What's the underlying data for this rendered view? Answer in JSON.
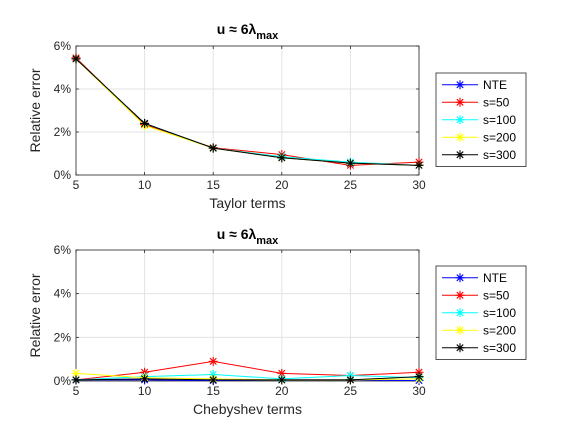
{
  "chart_data": [
    {
      "type": "line",
      "title": "u ≈ 6λ",
      "title_subscript": "max",
      "xlabel": "Taylor terms",
      "ylabel": "Relative error",
      "xlim": [
        5,
        30
      ],
      "ylim": [
        0,
        6
      ],
      "xticks": [
        "5",
        "10",
        "15",
        "20",
        "25",
        "30"
      ],
      "yticks": [
        "0%",
        "2%",
        "4%",
        "6%"
      ],
      "x": [
        5,
        10,
        15,
        20,
        25,
        30
      ],
      "grid": true,
      "legend_position": "right",
      "series": [
        {
          "name": "NTE",
          "color": "#0000ff",
          "values": [
            5.4,
            2.4,
            1.25,
            0.8,
            0.55,
            0.45
          ]
        },
        {
          "name": "s=50",
          "color": "#ff0000",
          "values": [
            5.45,
            2.35,
            1.27,
            0.95,
            0.45,
            0.6
          ]
        },
        {
          "name": "s=100",
          "color": "#00ffff",
          "values": [
            5.4,
            2.4,
            1.25,
            0.85,
            0.6,
            0.45
          ]
        },
        {
          "name": "s=200",
          "color": "#ffff00",
          "values": [
            5.4,
            2.3,
            1.25,
            0.8,
            0.55,
            0.45
          ]
        },
        {
          "name": "s=300",
          "color": "#000000",
          "values": [
            5.4,
            2.4,
            1.25,
            0.8,
            0.55,
            0.45
          ]
        }
      ]
    },
    {
      "type": "line",
      "title": "u ≈ 6λ",
      "title_subscript": "max",
      "xlabel": "Chebyshev terms",
      "ylabel": "Relative error",
      "xlim": [
        5,
        30
      ],
      "ylim": [
        0,
        6
      ],
      "xticks": [
        "5",
        "10",
        "15",
        "20",
        "25",
        "30"
      ],
      "yticks": [
        "0%",
        "2%",
        "4%",
        "6%"
      ],
      "x": [
        5,
        10,
        15,
        20,
        25,
        30
      ],
      "grid": true,
      "legend_position": "right",
      "series": [
        {
          "name": "NTE",
          "color": "#0000ff",
          "values": [
            0.05,
            0.05,
            0.02,
            0.05,
            0.05,
            0.02
          ]
        },
        {
          "name": "s=50",
          "color": "#ff0000",
          "values": [
            0.05,
            0.4,
            0.9,
            0.35,
            0.25,
            0.4
          ]
        },
        {
          "name": "s=100",
          "color": "#00ffff",
          "values": [
            0.05,
            0.2,
            0.3,
            0.1,
            0.25,
            0.15
          ]
        },
        {
          "name": "s=200",
          "color": "#ffff00",
          "values": [
            0.35,
            0.15,
            0.1,
            0.05,
            0.05,
            0.1
          ]
        },
        {
          "name": "s=300",
          "color": "#000000",
          "values": [
            0.05,
            0.1,
            0.05,
            0.05,
            0.05,
            0.2
          ]
        }
      ]
    }
  ]
}
